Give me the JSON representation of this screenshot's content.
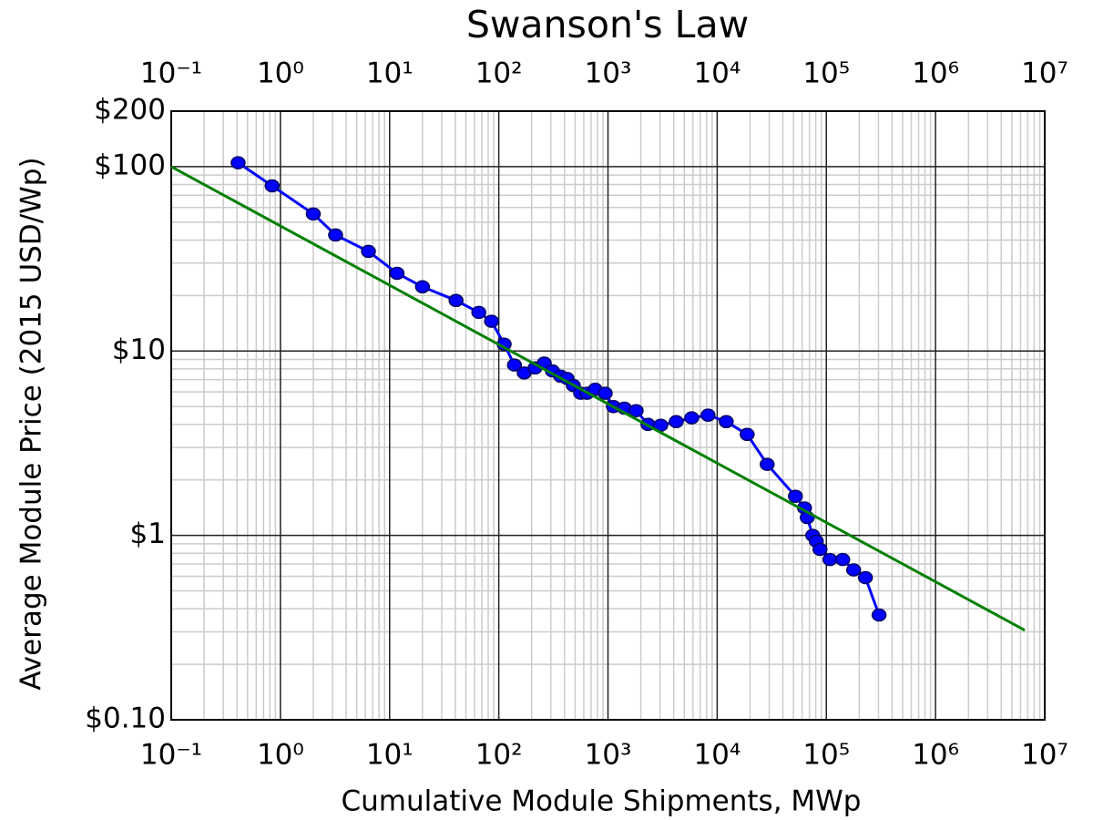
{
  "chart_data": {
    "type": "line",
    "title": "Swanson's Law",
    "x_label": "Cumulative Module Shipments, MWp",
    "y_label": "Average Module Price (2015 USD/Wp)",
    "x_scale": "log",
    "y_scale": "log",
    "grid": true,
    "xlim": [
      0.1,
      10000000
    ],
    "ylim": [
      0.1,
      200
    ],
    "xticks": [
      {
        "value": 0.1,
        "label": "10⁻¹"
      },
      {
        "value": 1,
        "label": "10⁰"
      },
      {
        "value": 10,
        "label": "10¹"
      },
      {
        "value": 100,
        "label": "10²"
      },
      {
        "value": 1000,
        "label": "10³"
      },
      {
        "value": 10000,
        "label": "10⁴"
      },
      {
        "value": 100000,
        "label": "10⁵"
      },
      {
        "value": 1000000,
        "label": "10⁶"
      },
      {
        "value": 10000000,
        "label": "10⁷"
      }
    ],
    "yticks": [
      {
        "value": 0.1,
        "label": "$0.10"
      },
      {
        "value": 1,
        "label": "$1"
      },
      {
        "value": 10,
        "label": "$10"
      },
      {
        "value": 100,
        "label": "$100"
      },
      {
        "value": 200,
        "label": "$200"
      }
    ],
    "series": [
      {
        "color": "#0000ff",
        "markers": true,
        "x": [
          0.41,
          0.84,
          2.0,
          3.2,
          6.4,
          11.7,
          20,
          40.6,
          65.6,
          85.8,
          112,
          139,
          171,
          215,
          261,
          310,
          369,
          422,
          482,
          562,
          643,
          764,
          944,
          1122,
          1413,
          1812,
          2326,
          3043,
          4217,
          5845,
          8254,
          12115,
          18836,
          28720,
          52090,
          63096,
          66834,
          74989,
          80943,
          87498,
          107895,
          141254,
          177828,
          228000,
          304000
        ],
        "values": [
          105,
          78.7,
          55.4,
          42.6,
          34.7,
          26.4,
          22.3,
          18.8,
          16.2,
          14.5,
          10.9,
          8.4,
          7.6,
          8.1,
          8.6,
          7.8,
          7.3,
          7.1,
          6.5,
          5.9,
          5.9,
          6.2,
          5.9,
          5.0,
          4.9,
          4.75,
          4.0,
          3.96,
          4.14,
          4.34,
          4.49,
          4.14,
          3.53,
          2.43,
          1.63,
          1.41,
          1.25,
          1.0,
          0.93,
          0.84,
          0.74,
          0.74,
          0.65,
          0.59,
          0.37
        ]
      },
      {
        "color": "#008000",
        "markers": false,
        "x": [
          0.1,
          6560000
        ],
        "values": [
          100,
          0.306
        ]
      }
    ]
  }
}
